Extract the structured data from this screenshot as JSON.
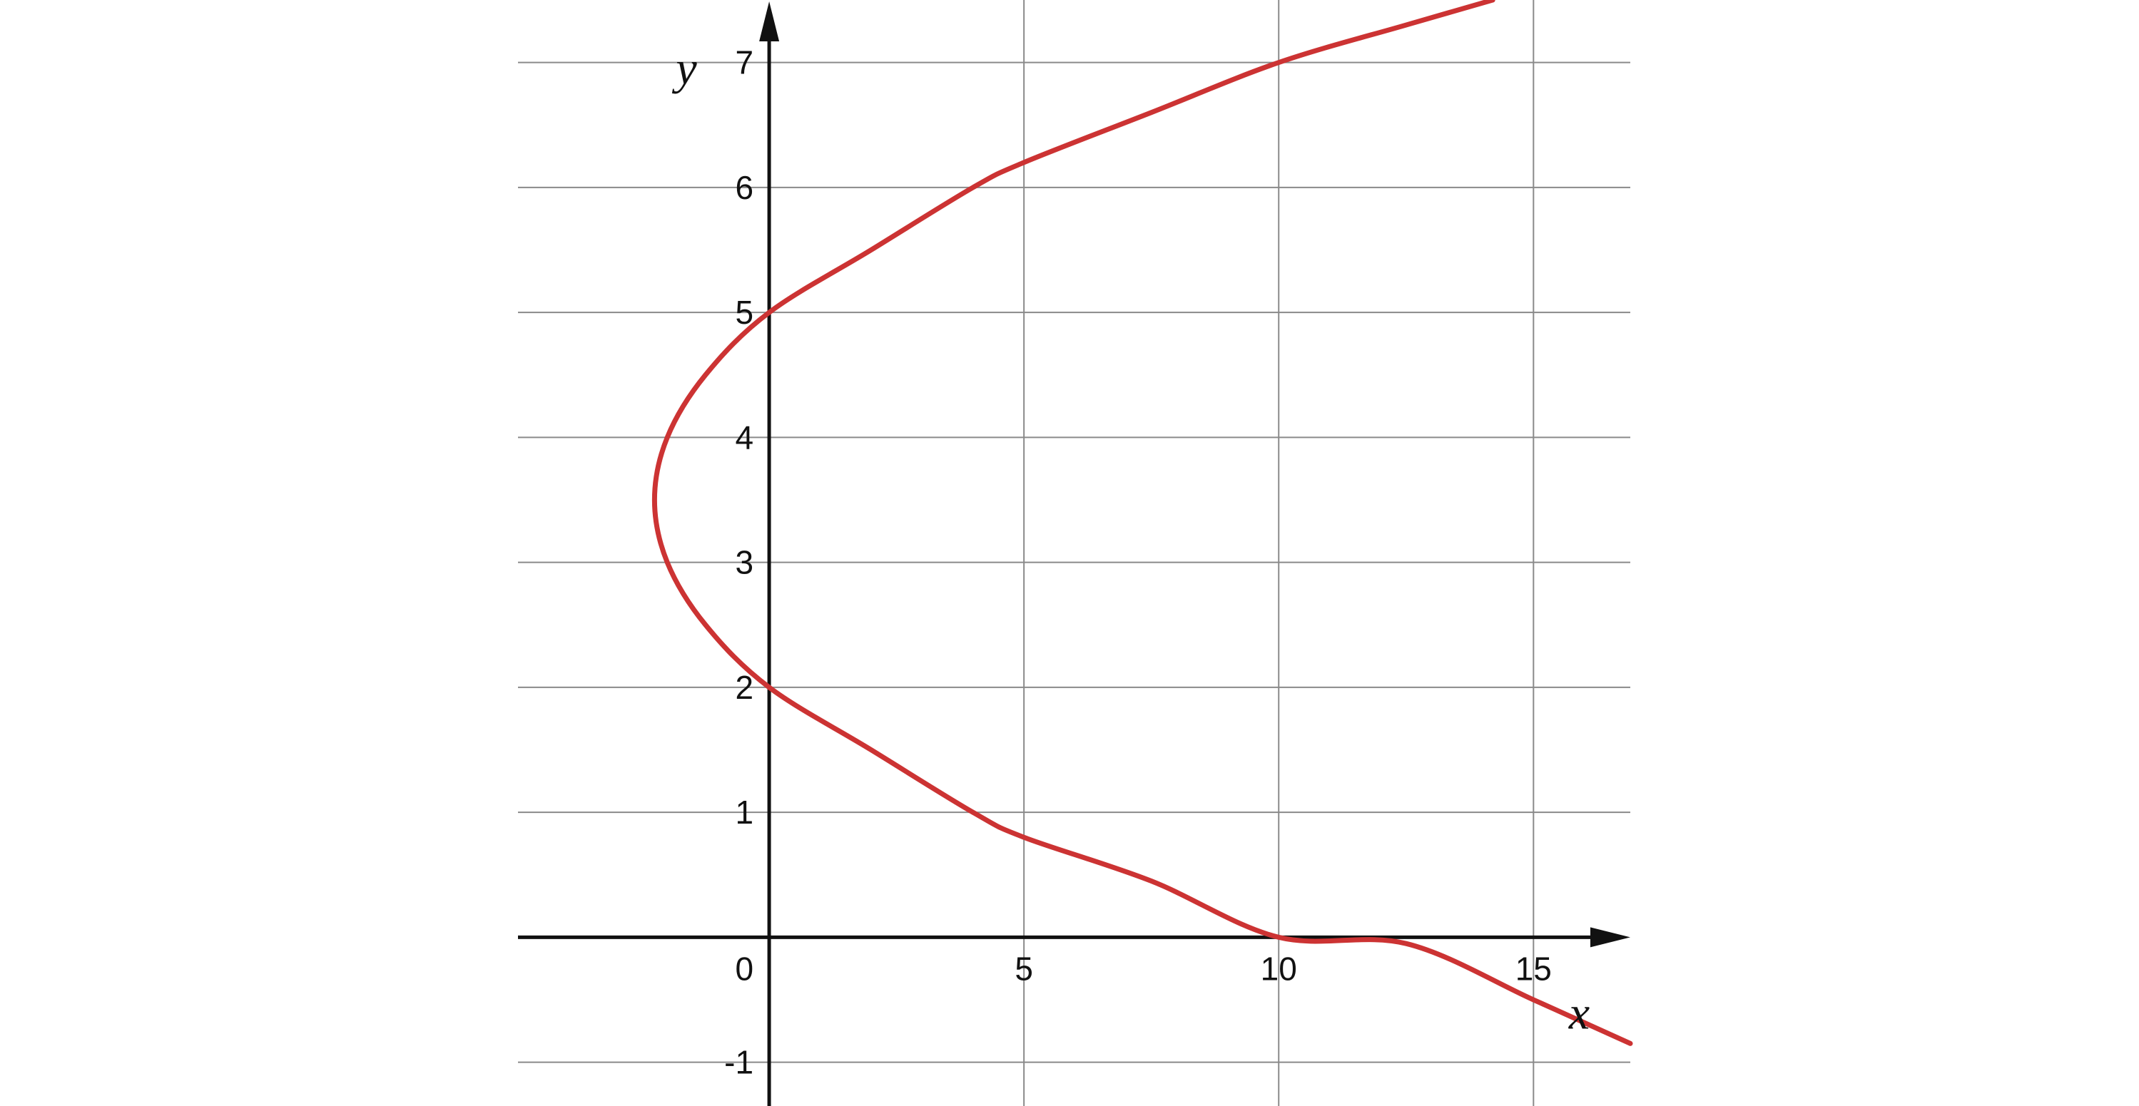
{
  "chart_data": {
    "type": "line",
    "xlabel": "x",
    "ylabel": "y",
    "origin_label": "0",
    "xlim": [
      -4.93,
      16.9
    ],
    "ylim": [
      -1.35,
      7.5
    ],
    "x_ticks": [
      {
        "value": 5,
        "label": "5"
      },
      {
        "value": 10,
        "label": "10"
      },
      {
        "value": 15,
        "label": "15"
      }
    ],
    "y_ticks": [
      {
        "value": -1,
        "label": "-1"
      },
      {
        "value": 1,
        "label": "1"
      },
      {
        "value": 2,
        "label": "2"
      },
      {
        "value": 3,
        "label": "3"
      },
      {
        "value": 4,
        "label": "4"
      },
      {
        "value": 5,
        "label": "5"
      },
      {
        "value": 6,
        "label": "6"
      },
      {
        "value": 7,
        "label": "7"
      }
    ],
    "grid": true,
    "series": [
      {
        "color": "#cc3333",
        "points": [
          [
            16.9,
            -0.85
          ],
          [
            15.0,
            -0.5
          ],
          [
            12.5,
            -0.05
          ],
          [
            10.0,
            0.0
          ],
          [
            7.5,
            0.45
          ],
          [
            5.0,
            0.8
          ],
          [
            4.0,
            1.0
          ],
          [
            2.0,
            1.5
          ],
          [
            0.0,
            2.0
          ],
          [
            -1.25,
            2.5
          ],
          [
            -2.0,
            3.0
          ],
          [
            -2.25,
            3.5
          ],
          [
            -2.0,
            4.0
          ],
          [
            -1.25,
            4.5
          ],
          [
            0.0,
            5.0
          ],
          [
            2.0,
            5.5
          ],
          [
            4.0,
            6.0
          ],
          [
            5.0,
            6.2
          ],
          [
            7.5,
            6.6
          ],
          [
            10.0,
            7.0
          ],
          [
            12.5,
            7.3
          ],
          [
            14.2,
            7.5
          ]
        ]
      }
    ]
  }
}
